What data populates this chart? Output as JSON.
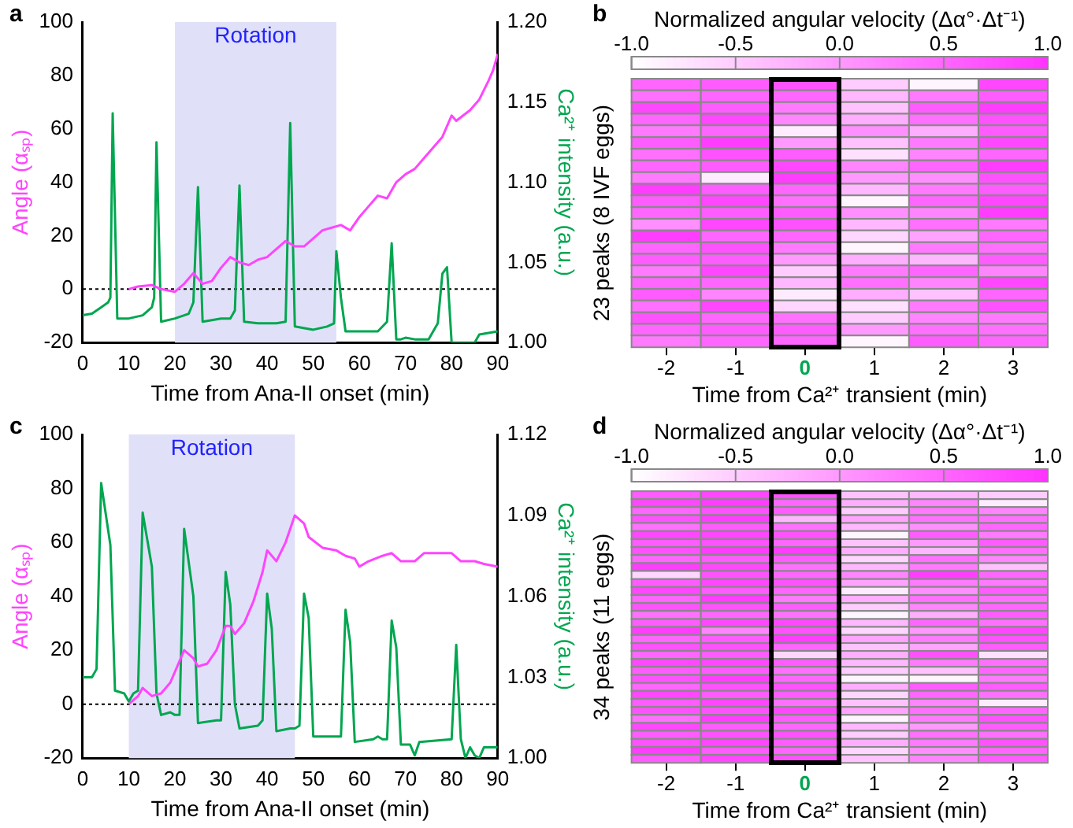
{
  "chart_data": [
    {
      "type": "line",
      "annotations": [
        "a"
      ],
      "xlabel": "Time from Ana-II onset (min)",
      "ylabel": "Angle (αₛₚ)",
      "y2label": "Ca²⁺ intensity (a.u.)",
      "xlim": [
        0,
        90
      ],
      "xticks": [
        0,
        10,
        20,
        30,
        40,
        50,
        60,
        70,
        80,
        90
      ],
      "ylim": [
        -20,
        100
      ],
      "yticks": [
        -20,
        0,
        20,
        40,
        60,
        80,
        100
      ],
      "y2lim": [
        1,
        1.2
      ],
      "y2ticks": [
        {
          "value": 1,
          "label": "1.00"
        },
        {
          "value": 1.05,
          "label": "1.05"
        },
        {
          "value": 1.1,
          "label": "1.10"
        },
        {
          "value": 1.15,
          "label": "1.15"
        },
        {
          "value": 1.2,
          "label": "1.20"
        }
      ],
      "grid": false,
      "legend": false,
      "bands": [
        {
          "axis": "x",
          "from": 20,
          "to": 55,
          "label": "Rotation",
          "color": "#e0e0f8"
        }
      ],
      "ref_lines": [
        {
          "axis": "y",
          "value": 0,
          "color": "#000000",
          "line_style": "dotted"
        }
      ],
      "series": [
        {
          "color": "#ff44ff",
          "x": [
            10,
            12,
            15,
            17,
            20,
            22,
            24,
            26,
            28,
            30,
            32,
            34,
            36,
            38,
            40,
            42,
            44,
            46,
            48,
            50,
            52,
            54,
            56,
            58,
            60,
            62,
            64,
            66,
            68,
            70,
            72,
            74,
            76,
            78,
            80,
            81,
            84,
            86,
            88,
            89,
            90
          ],
          "values": [
            0,
            1,
            1.5,
            0,
            -1,
            2,
            6,
            2,
            3,
            8,
            12,
            10,
            9,
            11,
            12,
            15,
            18,
            16,
            16,
            19,
            22,
            23,
            24,
            22,
            27,
            31,
            35,
            34,
            40,
            43,
            45,
            49,
            53,
            57,
            65,
            63,
            67,
            71,
            78,
            82,
            88
          ]
        },
        {
          "color": "#00a650",
          "axis": "y2",
          "x": [
            0,
            2,
            4,
            5.5,
            6,
            6.5,
            7.5,
            10,
            13,
            15,
            15.5,
            16,
            17,
            20,
            23,
            24,
            25,
            26,
            30,
            32,
            33,
            34,
            35,
            38,
            42,
            44,
            45,
            46,
            50,
            53,
            54.5,
            55,
            56,
            57,
            60,
            64,
            66,
            67,
            68,
            69,
            70,
            72,
            75,
            77,
            78,
            79,
            80,
            85,
            86,
            90
          ],
          "values": [
            1.017,
            1.018,
            1.022,
            1.025,
            1.028,
            1.143,
            1.015,
            1.015,
            1.017,
            1.022,
            1.028,
            1.125,
            1.013,
            1.015,
            1.018,
            1.025,
            1.097,
            1.013,
            1.015,
            1.015,
            1.02,
            1.098,
            1.013,
            1.012,
            1.012,
            1.013,
            1.137,
            1.01,
            1.008,
            1.01,
            1.012,
            1.057,
            1.028,
            1.007,
            1.007,
            1.007,
            1.013,
            1.062,
            1.002,
            1.002,
            1.003,
            1.002,
            1.002,
            1.012,
            1.043,
            1.047,
            1,
            1,
            1.005,
            1.007
          ]
        }
      ]
    },
    {
      "type": "heatmap",
      "annotations": [
        "b"
      ],
      "clabel": "Normalized angular velocity (Δα°·Δt⁻¹)",
      "xlabel": "Time from Ca²⁺ transient (min)",
      "ylabel": "23 peaks (8 IVF eggs)",
      "clim": [
        -1,
        1
      ],
      "cticks": [
        {
          "value": -1,
          "label": "-1.0"
        },
        {
          "value": -0.5,
          "label": "-0.5"
        },
        {
          "value": 0,
          "label": "0.0"
        },
        {
          "value": 0.5,
          "label": "0.5"
        },
        {
          "value": 1,
          "label": "1.0"
        }
      ],
      "categories": [
        "-2",
        "-1",
        "0",
        "1",
        "2",
        "3"
      ],
      "y_categories": [
        null,
        null,
        null,
        null,
        null,
        null,
        null,
        null,
        null,
        null,
        null,
        null,
        null,
        null,
        null,
        null,
        null,
        null,
        null,
        null,
        null,
        null,
        null
      ],
      "cells": [
        [
          0.5,
          0.6,
          0.7,
          -0.5,
          -0.9,
          0.8
        ],
        [
          0.4,
          0.5,
          0.5,
          -0.3,
          0.3,
          0.6
        ],
        [
          0.8,
          0.6,
          0.3,
          -0.4,
          0.6,
          0.9
        ],
        [
          0.5,
          0.8,
          0.2,
          -0.2,
          0.4,
          0.7
        ],
        [
          0.3,
          0.5,
          -0.8,
          0.1,
          -0.2,
          0.6
        ],
        [
          0.6,
          0.9,
          0,
          -0.4,
          0.3,
          0.8
        ],
        [
          0.4,
          0.7,
          0.6,
          -0.7,
          0.2,
          0.5
        ],
        [
          0.5,
          0.6,
          0.8,
          0.2,
          0.5,
          0.9
        ],
        [
          0.3,
          -0.8,
          0.9,
          0,
          0.1,
          0.7
        ],
        [
          0.9,
          0.6,
          0.5,
          -0.3,
          0.3,
          0.6
        ],
        [
          0.6,
          0.8,
          0.4,
          -0.9,
          0.5,
          0.8
        ],
        [
          0.5,
          0.6,
          0.6,
          0.1,
          0.2,
          0.9
        ],
        [
          0.1,
          0.8,
          0.7,
          -0.3,
          0.4,
          0.3
        ],
        [
          0.9,
          0.5,
          0.5,
          -0.6,
          -0.1,
          0.5
        ],
        [
          0.5,
          0.7,
          0.3,
          -0.9,
          0.3,
          0.4
        ],
        [
          0.6,
          0.6,
          0,
          -0.2,
          -0.3,
          0.6
        ],
        [
          0.3,
          0.8,
          -0.5,
          0.3,
          0.5,
          0.2
        ],
        [
          0.5,
          0.5,
          -0.3,
          0.4,
          0.2,
          0.8
        ],
        [
          0.6,
          0.2,
          -0.8,
          -0.2,
          -0.4,
          0.5
        ],
        [
          0.4,
          0.8,
          -0.6,
          -0.7,
          0.3,
          0.7
        ],
        [
          0.7,
          0.5,
          0.4,
          -0.5,
          0.2,
          0.3
        ],
        [
          0.5,
          0.6,
          0.6,
          0,
          0.4,
          0.4
        ],
        [
          0.3,
          0.5,
          0.5,
          -0.9,
          0.6,
          0.5
        ]
      ]
    },
    {
      "type": "line",
      "annotations": [
        "c"
      ],
      "xlabel": "Time from Ana-II onset (min)",
      "ylabel": "Angle (αₛₚ)",
      "y2label": "Ca²⁺ intensity (a.u.)",
      "xlim": [
        0,
        90
      ],
      "xticks": [
        0,
        10,
        20,
        30,
        40,
        50,
        60,
        70,
        80,
        90
      ],
      "ylim": [
        -20,
        100
      ],
      "yticks": [
        -20,
        0,
        20,
        40,
        60,
        80,
        100
      ],
      "y2lim": [
        1,
        1.12
      ],
      "y2ticks": [
        {
          "value": 1,
          "label": "1.00"
        },
        {
          "value": 1.03,
          "label": "1.03"
        },
        {
          "value": 1.06,
          "label": "1.06"
        },
        {
          "value": 1.09,
          "label": "1.09"
        },
        {
          "value": 1.12,
          "label": "1.12"
        }
      ],
      "grid": false,
      "legend": false,
      "bands": [
        {
          "axis": "x",
          "from": 10,
          "to": 46,
          "label": "Rotation",
          "color": "#e0e0f8"
        }
      ],
      "ref_lines": [
        {
          "axis": "y",
          "value": 0,
          "color": "#000000",
          "line_style": "dotted"
        }
      ],
      "series": [
        {
          "color": "#ff44ff",
          "x": [
            10,
            12,
            13,
            15,
            17,
            19,
            21,
            22,
            24,
            25,
            27,
            29,
            31,
            32,
            33,
            35,
            37,
            39,
            40,
            42,
            44,
            46,
            48,
            49,
            52,
            55,
            57,
            59,
            60,
            62,
            65,
            67,
            69,
            72,
            74,
            78,
            80,
            82,
            85,
            87,
            90
          ],
          "values": [
            0,
            3,
            6,
            3,
            4,
            8,
            16,
            20,
            17,
            14,
            15,
            20,
            29,
            29,
            26,
            30,
            38,
            49,
            57,
            53,
            60,
            70,
            67,
            62,
            58,
            57,
            55,
            54,
            51,
            53,
            55,
            56,
            53,
            53,
            56,
            56,
            56,
            53,
            53,
            52,
            51
          ]
        },
        {
          "color": "#00a650",
          "axis": "y2",
          "x": [
            0,
            2,
            3,
            4,
            6,
            7,
            9,
            10,
            11,
            12,
            13,
            15,
            16,
            17,
            19,
            20,
            21,
            22,
            24,
            25,
            29,
            30,
            31,
            32,
            33,
            34,
            38,
            39,
            40,
            41,
            42,
            45,
            46,
            47,
            48,
            49,
            50,
            55,
            56,
            57,
            58,
            59,
            63,
            64,
            65,
            66,
            67,
            68,
            69,
            71,
            72,
            73,
            80,
            81,
            82,
            83,
            84,
            85,
            86,
            87,
            90
          ],
          "values": [
            1.03,
            1.03,
            1.033,
            1.102,
            1.079,
            1.025,
            1.024,
            1.021,
            1.024,
            1.025,
            1.091,
            1.071,
            1.024,
            1.016,
            1.017,
            1.016,
            1.016,
            1.085,
            1.06,
            1.013,
            1.014,
            1.014,
            1.069,
            1.057,
            1.02,
            1.011,
            1.012,
            1.014,
            1.061,
            1.048,
            1.01,
            1.011,
            1.011,
            1.012,
            1.061,
            1.052,
            1.008,
            1.008,
            1.008,
            1.055,
            1.043,
            1.006,
            1.007,
            1.008,
            1.007,
            1.007,
            1.051,
            1.041,
            1.005,
            1.005,
            1.001,
            1.006,
            1.007,
            1.042,
            1.007,
            1,
            1.004,
            1.001,
            1,
            1.004,
            1.004
          ]
        }
      ]
    },
    {
      "type": "heatmap",
      "annotations": [
        "d"
      ],
      "clabel": "Normalized angular velocity (Δα°·Δt⁻¹)",
      "xlabel": "Time from Ca²⁺ transient (min)",
      "ylabel": "34 peaks (11 eggs)",
      "clim": [
        -1,
        1
      ],
      "cticks": [
        {
          "value": -1,
          "label": "-1.0"
        },
        {
          "value": -0.5,
          "label": "-0.5"
        },
        {
          "value": 0,
          "label": "0.0"
        },
        {
          "value": 0.5,
          "label": "0.5"
        },
        {
          "value": 1,
          "label": "1.0"
        }
      ],
      "categories": [
        "-2",
        "-1",
        "0",
        "1",
        "2",
        "3"
      ],
      "y_categories": [
        null,
        null,
        null,
        null,
        null,
        null,
        null,
        null,
        null,
        null,
        null,
        null,
        null,
        null,
        null,
        null,
        null,
        null,
        null,
        null,
        null,
        null,
        null,
        null,
        null,
        null,
        null,
        null,
        null,
        null,
        null,
        null,
        null,
        null
      ],
      "cells": [
        [
          0.6,
          0.8,
          0.7,
          -0.4,
          -0.3,
          -0.5
        ],
        [
          0.8,
          0.9,
          0.5,
          -0.2,
          0.2,
          -0.8
        ],
        [
          0.5,
          0.7,
          0.6,
          -0.5,
          0.3,
          0.2
        ],
        [
          0.7,
          0.9,
          -0.3,
          -0.1,
          0.4,
          0.4
        ],
        [
          0.4,
          0.6,
          0.4,
          -0.3,
          0.1,
          0.5
        ],
        [
          0.8,
          0.8,
          0.7,
          -0.9,
          0.6,
          0.3
        ],
        [
          0.6,
          0.7,
          0.5,
          -0.4,
          0,
          0.6
        ],
        [
          0.7,
          0.9,
          0.9,
          -0.2,
          -0.3,
          0.4
        ],
        [
          0.5,
          0.6,
          0.6,
          -0.6,
          0.4,
          0.2
        ],
        [
          0.9,
          0.8,
          0.4,
          -0.3,
          0.3,
          -0.4
        ],
        [
          -0.6,
          0.7,
          0.5,
          0.2,
          0.9,
          0.5
        ],
        [
          0.6,
          0.8,
          0.7,
          -0.1,
          0.3,
          0.3
        ],
        [
          0.8,
          0.6,
          0.5,
          -0.8,
          0.1,
          0.6
        ],
        [
          0.5,
          0.9,
          0.3,
          -0.2,
          0.4,
          0.4
        ],
        [
          0.7,
          0.7,
          0.6,
          -0.5,
          0.2,
          0.5
        ],
        [
          0.4,
          0.5,
          0.4,
          -0.9,
          -0.2,
          0.6
        ],
        [
          0.6,
          0.8,
          0.8,
          -0.3,
          0.5,
          0.4
        ],
        [
          0.9,
          0.2,
          0.7,
          -0.6,
          0,
          0.8
        ],
        [
          0.5,
          0.6,
          0.9,
          -0.1,
          0.3,
          0.7
        ],
        [
          0.7,
          0.7,
          0.5,
          -0.4,
          -0.1,
          0.6
        ],
        [
          0.5,
          0.6,
          -0.6,
          -0.2,
          0.7,
          -0.7
        ],
        [
          0.8,
          0.8,
          0.6,
          -0.3,
          0.3,
          0.4
        ],
        [
          0.6,
          0.6,
          0.4,
          -0.5,
          -0.4,
          0.5
        ],
        [
          0.7,
          0.9,
          0.5,
          -0.9,
          -0.9,
          0.3
        ],
        [
          0.5,
          0.7,
          0.7,
          -0.2,
          0.6,
          0.6
        ],
        [
          0.8,
          0.6,
          0.6,
          -0.6,
          0.5,
          0.4
        ],
        [
          0.6,
          0.8,
          0.4,
          -0.4,
          0.2,
          -0.8
        ],
        [
          0.7,
          0.7,
          0.8,
          -0.1,
          0.4,
          0.5
        ],
        [
          0.4,
          0.9,
          0.6,
          -0.9,
          0.3,
          0.7
        ],
        [
          0.8,
          0.6,
          0.5,
          -0.3,
          0,
          0.6
        ],
        [
          0.6,
          0.7,
          0.7,
          -0.5,
          0.4,
          0.4
        ],
        [
          0.7,
          0.8,
          0.6,
          -0.2,
          0.3,
          0.7
        ],
        [
          0.9,
          0.6,
          0.5,
          -0.6,
          0.1,
          0.5
        ],
        [
          0.6,
          0.8,
          0.7,
          -0.4,
          0.2,
          0.6
        ]
      ]
    }
  ]
}
